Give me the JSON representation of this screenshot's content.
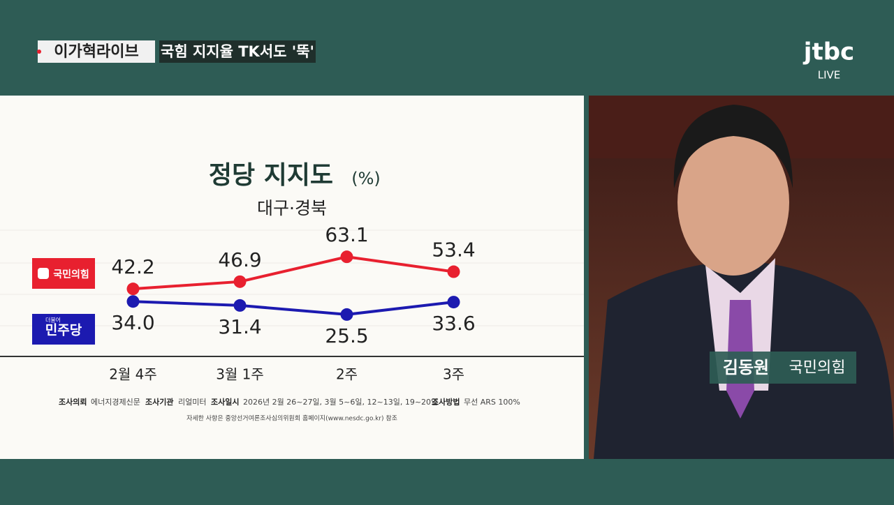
{
  "header": {
    "program": "이가혁라이브",
    "headline": "국힘 지지율 TK서도 '뚝'",
    "logo": "jtbc",
    "live": "LIVE"
  },
  "chart_data": {
    "type": "line",
    "title": "정당 지지도",
    "unit": "(%)",
    "subtitle": "대구·경북",
    "categories": [
      "2월 4주",
      "3월 1주",
      "2주",
      "3주"
    ],
    "series": [
      {
        "name": "국민의힘",
        "color": "#e8202f",
        "values": [
          42.2,
          46.9,
          63.1,
          53.4
        ]
      },
      {
        "name": "민주당",
        "legend_note": "더불어",
        "color": "#1c1ab0",
        "values": [
          34,
          31.4,
          25.5,
          33.6
        ],
        "value_labels": [
          "34.0",
          "31.4",
          "25.5",
          "33.6"
        ]
      }
    ],
    "ylim": [
      0,
      80
    ]
  },
  "survey": {
    "items": [
      {
        "label": "조사의뢰",
        "text": "에너지경제신문"
      },
      {
        "label": "조사기관",
        "text": "리얼미터"
      },
      {
        "label": "조사일시",
        "text": "2026년 2월 26~27일, 3월 5~6일, 12~13일, 19~20일"
      },
      {
        "label": "조사방법",
        "text": "무선 ARS 100%"
      }
    ],
    "note": "자세한 사항은 중앙선거여론조사심의위원회 홈페이지(www.nesdc.go.kr) 참조"
  },
  "caption": {
    "name": "김동원",
    "affiliation": "국민의힘"
  }
}
